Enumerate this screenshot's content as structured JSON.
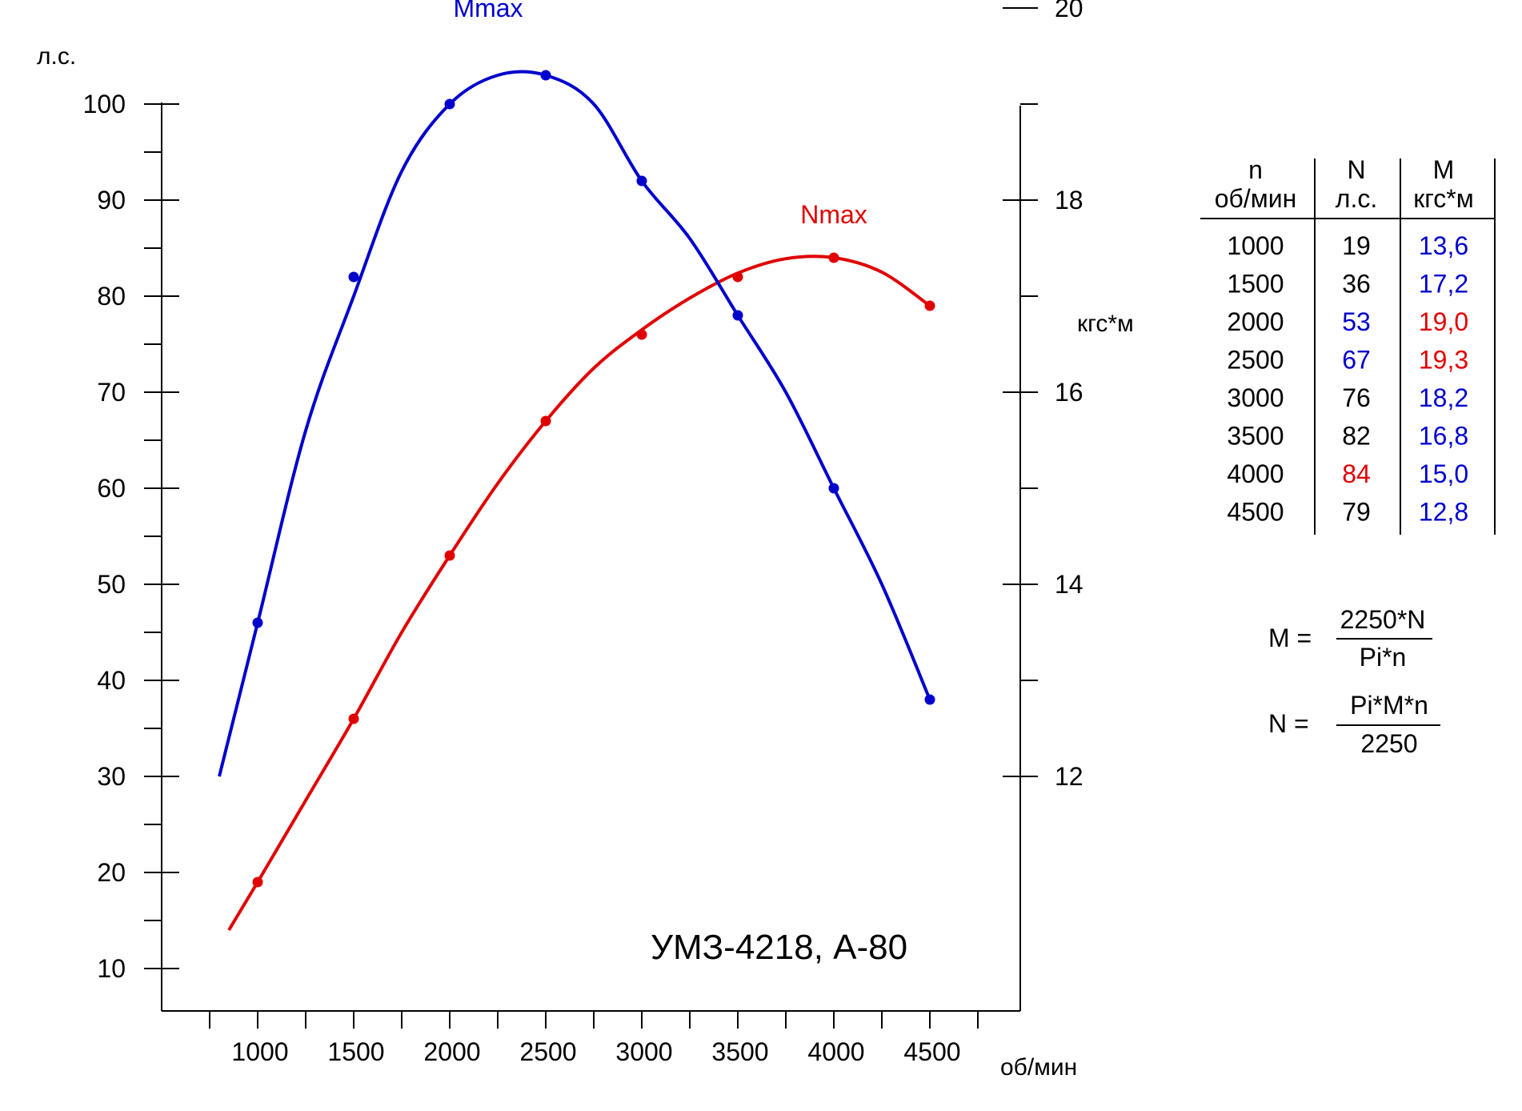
{
  "colors": {
    "N": "#e00000",
    "M": "#0000cc",
    "text": "#000000"
  },
  "chart_data": {
    "type": "line",
    "title": "УМЗ-4218, А-80",
    "xlabel": "об/мин",
    "ylabel_left": "л.с.",
    "ylabel_right": "кгс*м",
    "x_ticks": [
      1000,
      1500,
      2000,
      2500,
      3000,
      3500,
      4000,
      4500
    ],
    "x_minor_ticks": [
      750,
      1250,
      1750,
      2250,
      2750,
      3250,
      3750,
      4250,
      4750
    ],
    "xlim": [
      500,
      4750
    ],
    "y_left_ticks": [
      10,
      20,
      30,
      40,
      50,
      60,
      70,
      80,
      90,
      100
    ],
    "ylim_left": [
      5,
      100
    ],
    "y_right_ticks": [
      12,
      14,
      16,
      18,
      20
    ],
    "y_right_minor_ticks": [
      13,
      15,
      17,
      19,
      21
    ],
    "grid": false,
    "series": [
      {
        "name": "N",
        "axis": "left",
        "color_key": "N",
        "x": [
          1000,
          1500,
          2000,
          2500,
          3000,
          3500,
          4000,
          4500
        ],
        "values": [
          19,
          36,
          53,
          67,
          76,
          82,
          84,
          79
        ],
        "curve_x": [
          850,
          1000,
          1250,
          1500,
          1750,
          2000,
          2250,
          2500,
          2750,
          3000,
          3250,
          3500,
          3750,
          4000,
          4250,
          4500
        ],
        "curve_values": [
          14,
          19,
          27.5,
          36,
          45,
          53,
          60.5,
          67,
          72.5,
          76.5,
          79.8,
          82.4,
          83.9,
          84,
          82.5,
          79
        ],
        "annotation": "Nmax",
        "annotation_at": [
          4000,
          88.5
        ]
      },
      {
        "name": "M",
        "axis": "right",
        "color_key": "M",
        "x": [
          1000,
          1500,
          2000,
          2500,
          3000,
          3500,
          4000,
          4500
        ],
        "values": [
          13.6,
          17.2,
          19.0,
          19.3,
          18.2,
          16.8,
          15.0,
          12.8
        ],
        "curve_x": [
          800,
          1000,
          1250,
          1500,
          1750,
          2000,
          2250,
          2500,
          2750,
          3000,
          3250,
          3500,
          3750,
          4000,
          4250,
          4500
        ],
        "curve_values": [
          12.0,
          13.6,
          15.6,
          17.0,
          18.3,
          19.0,
          19.3,
          19.3,
          19.0,
          18.2,
          17.6,
          16.8,
          16.0,
          15.0,
          14.0,
          12.8
        ],
        "annotation": "Mmax",
        "annotation_at": [
          2200,
          20.0
        ]
      }
    ]
  },
  "table": {
    "headers": [
      {
        "line1": "n",
        "line2": "об/мин"
      },
      {
        "line1": "N",
        "line2": "л.с."
      },
      {
        "line1": "M",
        "line2": "кгс*м"
      }
    ],
    "rows": [
      {
        "n": "1000",
        "N": "19",
        "M": "13,6",
        "n_color": "text",
        "N_color": "text",
        "M_color": "M"
      },
      {
        "n": "1500",
        "N": "36",
        "M": "17,2",
        "n_color": "text",
        "N_color": "text",
        "M_color": "M"
      },
      {
        "n": "2000",
        "N": "53",
        "M": "19,0",
        "n_color": "text",
        "N_color": "M",
        "M_color": "N"
      },
      {
        "n": "2500",
        "N": "67",
        "M": "19,3",
        "n_color": "text",
        "N_color": "M",
        "M_color": "N"
      },
      {
        "n": "3000",
        "N": "76",
        "M": "18,2",
        "n_color": "text",
        "N_color": "text",
        "M_color": "M"
      },
      {
        "n": "3500",
        "N": "82",
        "M": "16,8",
        "n_color": "text",
        "N_color": "text",
        "M_color": "M"
      },
      {
        "n": "4000",
        "N": "84",
        "M": "15,0",
        "n_color": "text",
        "N_color": "N",
        "M_color": "M"
      },
      {
        "n": "4500",
        "N": "79",
        "M": "12,8",
        "n_color": "text",
        "N_color": "text",
        "M_color": "M"
      }
    ]
  },
  "formulas": [
    {
      "lhs": "M =",
      "numerator": "2250*N",
      "denominator": "Pi*n"
    },
    {
      "lhs": "N =",
      "numerator": "Pi*M*n",
      "denominator": "2250"
    }
  ]
}
